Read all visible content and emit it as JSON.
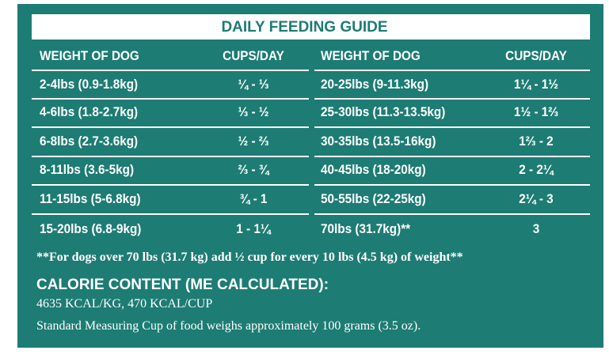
{
  "title": "DAILY FEEDING GUIDE",
  "tables": [
    {
      "header": [
        "WEIGHT OF DOG",
        "CUPS/DAY"
      ],
      "rows": [
        [
          "2-4lbs (0.9-1.8kg)",
          "¼ - ⅓"
        ],
        [
          "4-6lbs (1.8-2.7kg)",
          "⅓ - ½"
        ],
        [
          "6-8lbs (2.7-3.6kg)",
          "½ - ⅔"
        ],
        [
          "8-11lbs (3.6-5kg)",
          "⅔ - ¾"
        ],
        [
          "11-15lbs (5-6.8kg)",
          "¾ - 1"
        ],
        [
          "15-20lbs (6.8-9kg)",
          "1 - 1¼"
        ]
      ]
    },
    {
      "header": [
        "WEIGHT OF DOG",
        "CUPS/DAY"
      ],
      "rows": [
        [
          "20-25lbs (9-11.3kg)",
          "1¼ - 1½"
        ],
        [
          "25-30lbs (11.3-13.5kg)",
          "1½ - 1⅔"
        ],
        [
          "30-35lbs (13.5-16kg)",
          "1⅔ - 2"
        ],
        [
          "40-45lbs (18-20kg)",
          "2 - 2¼"
        ],
        [
          "50-55lbs (22-25kg)",
          "2¼ - 3"
        ],
        [
          "70lbs (31.7kg)**",
          "3"
        ]
      ]
    }
  ],
  "footnote": "**For dogs over 70 lbs (31.7 kg) add ½ cup for every 10 lbs (4.5 kg) of weight**",
  "calorie": {
    "heading": "CALORIE CONTENT (ME CALCULATED):",
    "lines": [
      "4635 KCAL/KG, 470 KCAL/CUP",
      "Standard Measuring Cup of food weighs approximately 100 grams (3.5 oz)."
    ]
  }
}
